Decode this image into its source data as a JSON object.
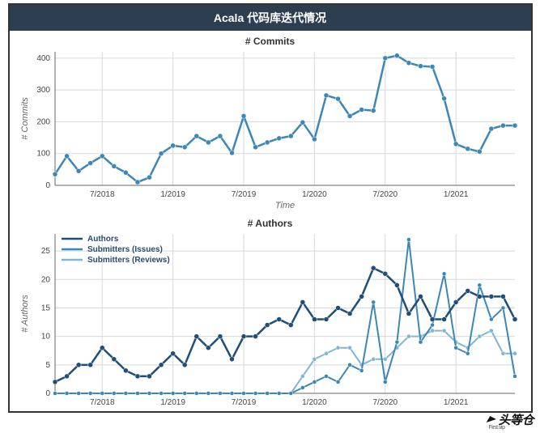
{
  "panel_title": "Acala 代码库迭代情况",
  "watermark_main": "头等仓",
  "watermark_sub": "First.vip",
  "commits_chart": {
    "type": "line",
    "title": "# Commits",
    "ylabel": "# Commits",
    "xlabel": "Time",
    "background_color": "#ffffff",
    "grid_color": "#d8d8d8",
    "line_color": "#3b87b8",
    "marker_color": "#3b87b8",
    "line_width": 2.5,
    "marker_radius": 3,
    "ylim": [
      0,
      420
    ],
    "ytick_step": 100,
    "x_ticks": [
      "7/2018",
      "1/2019",
      "7/2019",
      "1/2020",
      "7/2020",
      "1/2021"
    ],
    "x_start": 4,
    "x_step_per_tick": 6,
    "n_points": 40,
    "values": [
      35,
      92,
      45,
      70,
      92,
      60,
      40,
      10,
      25,
      100,
      125,
      120,
      155,
      135,
      155,
      102,
      218,
      120,
      135,
      148,
      155,
      198,
      145,
      283,
      272,
      218,
      238,
      235,
      400,
      408,
      385,
      375,
      373,
      273,
      130,
      115,
      106,
      178,
      188,
      188
    ]
  },
  "authors_chart": {
    "type": "line",
    "title": "# Authors",
    "ylabel": "# Authors",
    "background_color": "#ffffff",
    "grid_color": "#d8d8d8",
    "ylim": [
      0,
      28
    ],
    "ytick_step": 5,
    "x_ticks": [
      "7/2018",
      "1/2019",
      "7/2019",
      "1/2020",
      "7/2020",
      "1/2021"
    ],
    "x_start": 4,
    "x_step_per_tick": 6,
    "n_points": 40,
    "legend": [
      {
        "label": "Authors",
        "color": "#1f4e79"
      },
      {
        "label": "Submitters (Issues)",
        "color": "#3b87b8"
      },
      {
        "label": "Submitters (Reviews)",
        "color": "#7fb6d6"
      }
    ],
    "series": {
      "authors": {
        "color": "#1f4e79",
        "line_width": 2.5,
        "marker_radius": 3,
        "values": [
          2,
          3,
          5,
          5,
          8,
          6,
          4,
          3,
          3,
          5,
          7,
          5,
          10,
          8,
          10,
          6,
          10,
          10,
          12,
          13,
          12,
          16,
          13,
          13,
          15,
          14,
          17,
          22,
          21,
          19,
          14,
          17,
          13,
          13,
          16,
          18,
          17,
          17,
          17,
          13
        ]
      },
      "submitters_issues": {
        "color": "#3b87b8",
        "line_width": 2,
        "marker_radius": 2.5,
        "values": [
          0,
          0,
          0,
          0,
          0,
          0,
          0,
          0,
          0,
          0,
          0,
          0,
          0,
          0,
          0,
          0,
          0,
          0,
          0,
          0,
          0,
          1,
          2,
          3,
          2,
          5,
          4,
          16,
          2,
          9,
          27,
          9,
          12,
          21,
          8,
          7,
          19,
          13,
          15,
          3
        ]
      },
      "submitters_reviews": {
        "color": "#7fb6d6",
        "line_width": 2,
        "marker_radius": 2.5,
        "values": [
          0,
          0,
          0,
          0,
          0,
          0,
          0,
          0,
          0,
          0,
          0,
          0,
          0,
          0,
          0,
          0,
          0,
          0,
          0,
          0,
          0,
          3,
          6,
          7,
          8,
          8,
          5,
          6,
          6,
          8,
          10,
          10,
          11,
          11,
          9,
          8,
          10,
          11,
          7,
          7
        ]
      }
    }
  }
}
